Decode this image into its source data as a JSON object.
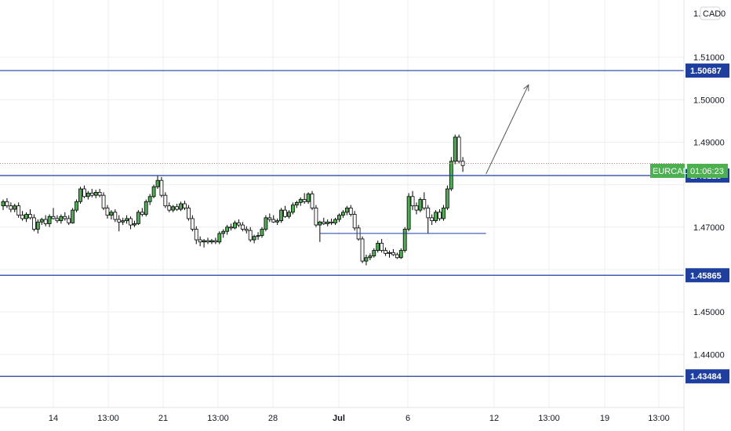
{
  "currency_badge": "CAD",
  "currency_prefix": "1.",
  "currency_suffix": "0",
  "symbol": "EURCAD",
  "countdown": "01:06:23",
  "colors": {
    "up": "#26a69a",
    "down": "#f23645",
    "candle_body_up": "#4caf50",
    "candle_body_down": "#ffffff",
    "candle_border": "#000000",
    "level_line": "#1e3fa0",
    "level_label_bg": "#1e3fa0",
    "symbol_label_bg": "#4caf50",
    "current_price_line": "#e57373",
    "grid": "#eceff3",
    "axis_text": "#131722"
  },
  "chart_data": {
    "type": "candlestick",
    "x_ticks": [
      "14",
      "13:00",
      "21",
      "13:00",
      "28",
      "Jul",
      "6",
      "12",
      "13:00",
      "19",
      "13:00"
    ],
    "x_tick_bold": "Jul",
    "y_ticks": [
      "1.51000",
      "1.50000",
      "1.49000",
      "1.47000",
      "1.45000",
      "1.44000"
    ],
    "ylim": [
      1.4275,
      1.5235
    ],
    "grid": true,
    "levels": [
      {
        "label": "1.50687",
        "value": 1.50687
      },
      {
        "label": "1.48215",
        "value": 1.48215
      },
      {
        "label": "1.45865",
        "value": 1.45865
      },
      {
        "label": "1.43484",
        "value": 1.43484
      }
    ],
    "current_price": 1.485,
    "minor_level": {
      "value": 1.4685,
      "from_candle": 82,
      "to_candle": 125
    },
    "projection_arrow": {
      "from_candle": 125,
      "from_value": 1.4825,
      "to_candle": 136,
      "to_value": 1.5035
    },
    "candles": [
      [
        1.475,
        1.4765,
        1.474,
        1.476
      ],
      [
        1.476,
        1.4768,
        1.4745,
        1.475
      ],
      [
        1.475,
        1.4758,
        1.4735,
        1.4742
      ],
      [
        1.4742,
        1.4755,
        1.4735,
        1.475
      ],
      [
        1.475,
        1.4758,
        1.4722,
        1.4728
      ],
      [
        1.4728,
        1.4738,
        1.4715,
        1.472
      ],
      [
        1.472,
        1.4735,
        1.4712,
        1.473
      ],
      [
        1.473,
        1.4742,
        1.4718,
        1.4722
      ],
      [
        1.4722,
        1.473,
        1.469,
        1.4695
      ],
      [
        1.4695,
        1.4718,
        1.4685,
        1.4712
      ],
      [
        1.4712,
        1.4722,
        1.4705,
        1.4718
      ],
      [
        1.4718,
        1.4728,
        1.4702,
        1.4708
      ],
      [
        1.4708,
        1.473,
        1.47,
        1.4725
      ],
      [
        1.4725,
        1.4745,
        1.4718,
        1.472
      ],
      [
        1.472,
        1.4728,
        1.471,
        1.4715
      ],
      [
        1.4715,
        1.473,
        1.4708,
        1.4725
      ],
      [
        1.4725,
        1.4735,
        1.4715,
        1.472
      ],
      [
        1.472,
        1.4728,
        1.4705,
        1.471
      ],
      [
        1.471,
        1.4745,
        1.4708,
        1.474
      ],
      [
        1.474,
        1.4765,
        1.4735,
        1.476
      ],
      [
        1.476,
        1.4795,
        1.4755,
        1.479
      ],
      [
        1.479,
        1.4798,
        1.4768,
        1.4772
      ],
      [
        1.4772,
        1.4785,
        1.4765,
        1.478
      ],
      [
        1.478,
        1.479,
        1.477,
        1.4775
      ],
      [
        1.4775,
        1.4788,
        1.4768,
        1.4782
      ],
      [
        1.4782,
        1.479,
        1.477,
        1.4775
      ],
      [
        1.4775,
        1.4782,
        1.474,
        1.4745
      ],
      [
        1.4745,
        1.4752,
        1.472,
        1.4728
      ],
      [
        1.4728,
        1.474,
        1.4718,
        1.4735
      ],
      [
        1.4735,
        1.4742,
        1.4712,
        1.4718
      ],
      [
        1.4718,
        1.4728,
        1.469,
        1.4712
      ],
      [
        1.4712,
        1.4722,
        1.4705,
        1.4715
      ],
      [
        1.4715,
        1.4728,
        1.4708,
        1.472
      ],
      [
        1.472,
        1.4725,
        1.4695,
        1.4705
      ],
      [
        1.4705,
        1.4715,
        1.47,
        1.4708
      ],
      [
        1.4708,
        1.474,
        1.4705,
        1.4735
      ],
      [
        1.4735,
        1.4745,
        1.4725,
        1.473
      ],
      [
        1.473,
        1.4765,
        1.4725,
        1.476
      ],
      [
        1.476,
        1.4778,
        1.4752,
        1.4772
      ],
      [
        1.4772,
        1.48,
        1.4768,
        1.4795
      ],
      [
        1.4795,
        1.4822,
        1.479,
        1.481
      ],
      [
        1.481,
        1.4818,
        1.477,
        1.4775
      ],
      [
        1.4775,
        1.4782,
        1.4745,
        1.475
      ],
      [
        1.475,
        1.4758,
        1.4735,
        1.474
      ],
      [
        1.474,
        1.4752,
        1.4735,
        1.4748
      ],
      [
        1.4748,
        1.4755,
        1.4738,
        1.4742
      ],
      [
        1.4742,
        1.476,
        1.4738,
        1.4755
      ],
      [
        1.4755,
        1.4762,
        1.474,
        1.4745
      ],
      [
        1.4745,
        1.4752,
        1.4715,
        1.472
      ],
      [
        1.472,
        1.4728,
        1.469,
        1.4695
      ],
      [
        1.4695,
        1.4702,
        1.466,
        1.467
      ],
      [
        1.467,
        1.4678,
        1.4655,
        1.4665
      ],
      [
        1.4665,
        1.4672,
        1.4652,
        1.4668
      ],
      [
        1.4668,
        1.4675,
        1.466,
        1.4665
      ],
      [
        1.4665,
        1.4672,
        1.466,
        1.4668
      ],
      [
        1.4668,
        1.4675,
        1.466,
        1.4665
      ],
      [
        1.4665,
        1.469,
        1.466,
        1.4685
      ],
      [
        1.4685,
        1.4695,
        1.4675,
        1.469
      ],
      [
        1.469,
        1.4705,
        1.4682,
        1.47
      ],
      [
        1.47,
        1.4708,
        1.4692,
        1.4698
      ],
      [
        1.4698,
        1.4715,
        1.4695,
        1.471
      ],
      [
        1.471,
        1.4718,
        1.47,
        1.4705
      ],
      [
        1.4705,
        1.4712,
        1.469,
        1.4695
      ],
      [
        1.4695,
        1.4702,
        1.4685,
        1.4692
      ],
      [
        1.4692,
        1.47,
        1.4665,
        1.467
      ],
      [
        1.467,
        1.4682,
        1.4662,
        1.4678
      ],
      [
        1.4678,
        1.4688,
        1.467,
        1.468
      ],
      [
        1.468,
        1.47,
        1.4675,
        1.4695
      ],
      [
        1.4695,
        1.4728,
        1.469,
        1.4722
      ],
      [
        1.4722,
        1.4732,
        1.4712,
        1.4718
      ],
      [
        1.4718,
        1.4728,
        1.471,
        1.4712
      ],
      [
        1.4712,
        1.472,
        1.4705,
        1.4715
      ],
      [
        1.4715,
        1.4745,
        1.471,
        1.474
      ],
      [
        1.474,
        1.475,
        1.4722,
        1.4725
      ],
      [
        1.4725,
        1.474,
        1.472,
        1.4735
      ],
      [
        1.4735,
        1.4758,
        1.473,
        1.4752
      ],
      [
        1.4752,
        1.4762,
        1.4745,
        1.4758
      ],
      [
        1.4758,
        1.477,
        1.475,
        1.4765
      ],
      [
        1.4765,
        1.478,
        1.4755,
        1.476
      ],
      [
        1.476,
        1.4782,
        1.4755,
        1.4778
      ],
      [
        1.4778,
        1.4785,
        1.474,
        1.4745
      ],
      [
        1.4745,
        1.4752,
        1.47,
        1.4705
      ],
      [
        1.4705,
        1.4715,
        1.4665,
        1.4712
      ],
      [
        1.4712,
        1.4722,
        1.4705,
        1.4708
      ],
      [
        1.4708,
        1.4718,
        1.4702,
        1.4712
      ],
      [
        1.4712,
        1.472,
        1.4705,
        1.471
      ],
      [
        1.471,
        1.4722,
        1.4705,
        1.4718
      ],
      [
        1.4718,
        1.4732,
        1.4712,
        1.4728
      ],
      [
        1.4728,
        1.474,
        1.4722,
        1.4735
      ],
      [
        1.4735,
        1.475,
        1.4728,
        1.4745
      ],
      [
        1.4745,
        1.4752,
        1.4725,
        1.473
      ],
      [
        1.473,
        1.4738,
        1.4692,
        1.4698
      ],
      [
        1.4698,
        1.4705,
        1.4668,
        1.4672
      ],
      [
        1.4672,
        1.4678,
        1.4615,
        1.462
      ],
      [
        1.462,
        1.4635,
        1.461,
        1.4628
      ],
      [
        1.4628,
        1.4638,
        1.4622,
        1.4632
      ],
      [
        1.4632,
        1.465,
        1.4628,
        1.4645
      ],
      [
        1.4645,
        1.4668,
        1.464,
        1.4662
      ],
      [
        1.4662,
        1.4672,
        1.464,
        1.4645
      ],
      [
        1.4645,
        1.4652,
        1.4632,
        1.4638
      ],
      [
        1.4638,
        1.4645,
        1.4628,
        1.464
      ],
      [
        1.464,
        1.4648,
        1.4632,
        1.4635
      ],
      [
        1.4635,
        1.464,
        1.4625,
        1.4628
      ],
      [
        1.4628,
        1.465,
        1.4625,
        1.4645
      ],
      [
        1.4645,
        1.47,
        1.464,
        1.4695
      ],
      [
        1.4695,
        1.478,
        1.469,
        1.4772
      ],
      [
        1.4772,
        1.4785,
        1.474,
        1.475
      ],
      [
        1.475,
        1.4758,
        1.473,
        1.474
      ],
      [
        1.474,
        1.477,
        1.4735,
        1.4765
      ],
      [
        1.4765,
        1.4782,
        1.474,
        1.4745
      ],
      [
        1.4745,
        1.4752,
        1.4685,
        1.4722
      ],
      [
        1.4722,
        1.473,
        1.4705,
        1.4715
      ],
      [
        1.4715,
        1.474,
        1.471,
        1.4735
      ],
      [
        1.4735,
        1.4742,
        1.4715,
        1.472
      ],
      [
        1.472,
        1.4752,
        1.4715,
        1.4745
      ],
      [
        1.4745,
        1.4798,
        1.474,
        1.479
      ],
      [
        1.479,
        1.4865,
        1.4785,
        1.4855
      ],
      [
        1.4855,
        1.4918,
        1.4848,
        1.4912
      ],
      [
        1.4912,
        1.4918,
        1.485,
        1.4855
      ],
      [
        1.4855,
        1.4865,
        1.483,
        1.4845
      ]
    ]
  }
}
